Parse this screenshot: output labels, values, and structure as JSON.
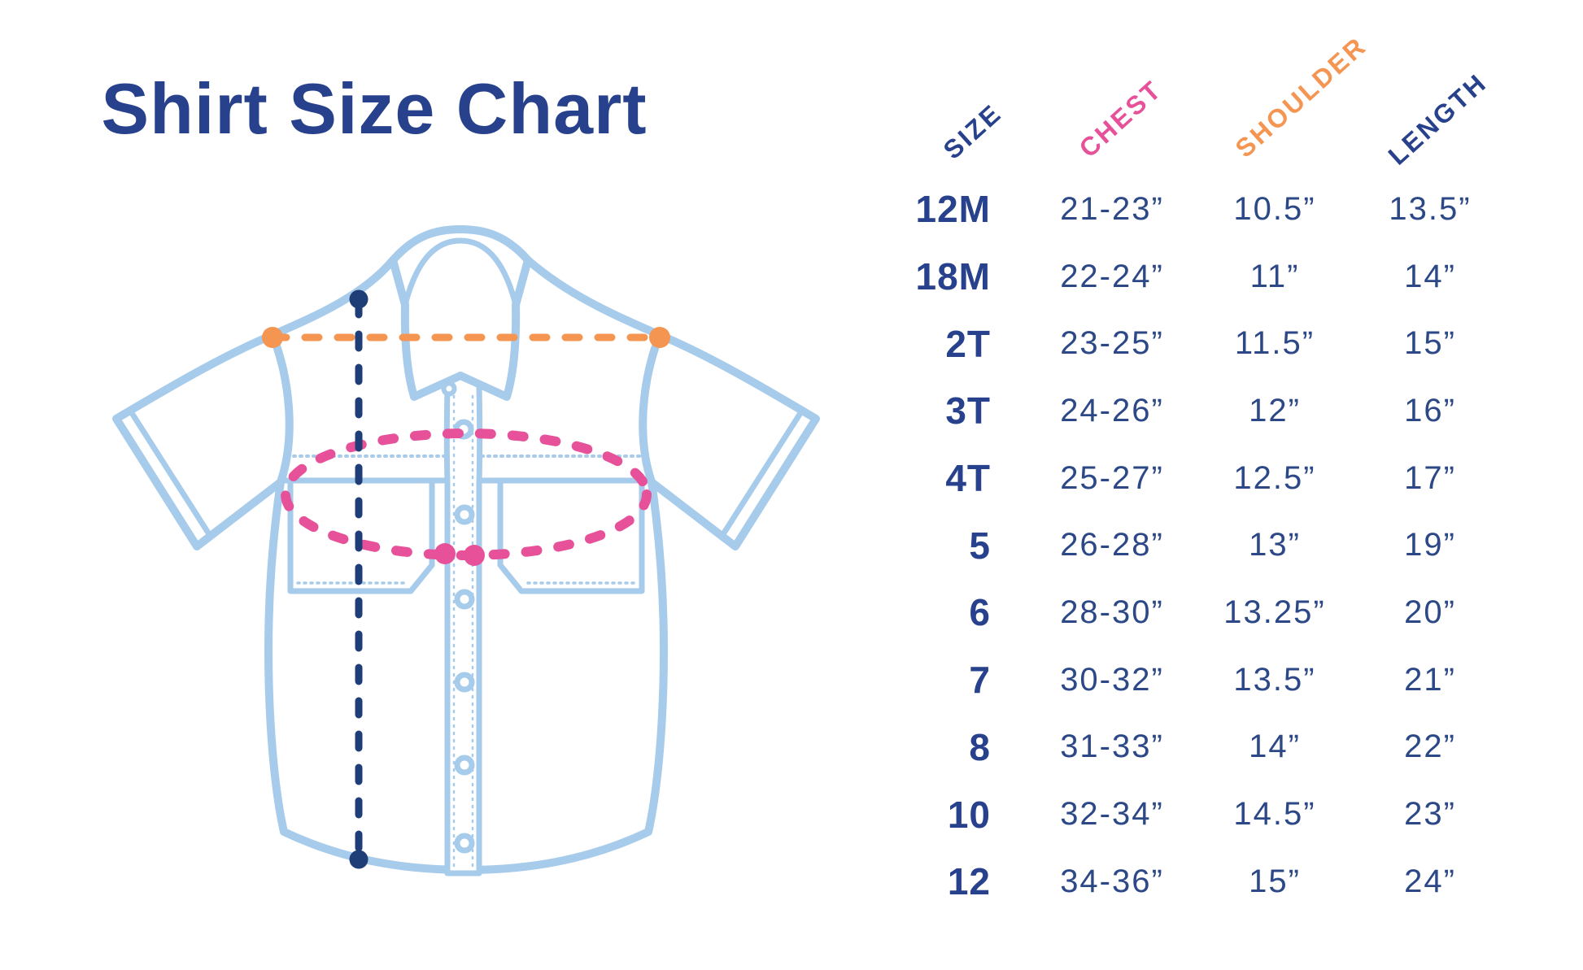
{
  "title": "Shirt Size Chart",
  "colors": {
    "navy_text": "#28418C",
    "value_text": "#2C4887",
    "pink": "#E6519A",
    "orange": "#F49552",
    "light_blue": "#A7CBEB",
    "line_navy": "#1F3E78"
  },
  "diagram": {
    "shirt_outline_color": "#A7CBEB",
    "shoulder_line_color": "#F49552",
    "chest_line_color": "#E6519A",
    "length_line_color": "#1F3E78"
  },
  "table": {
    "columns": [
      {
        "label": "SIZE",
        "color": "#28418C"
      },
      {
        "label": "CHEST",
        "color": "#E6519A"
      },
      {
        "label": "SHOULDER",
        "color": "#F49552"
      },
      {
        "label": "LENGTH",
        "color": "#28418C"
      }
    ],
    "rows": [
      {
        "size": "12M",
        "chest": "21-23”",
        "shoulder": "10.5”",
        "length": "13.5”"
      },
      {
        "size": "18M",
        "chest": "22-24”",
        "shoulder": "11”",
        "length": "14”"
      },
      {
        "size": "2T",
        "chest": "23-25”",
        "shoulder": "11.5”",
        "length": "15”"
      },
      {
        "size": "3T",
        "chest": "24-26”",
        "shoulder": "12”",
        "length": "16”"
      },
      {
        "size": "4T",
        "chest": "25-27”",
        "shoulder": "12.5”",
        "length": "17”"
      },
      {
        "size": "5",
        "chest": "26-28”",
        "shoulder": "13”",
        "length": "19”"
      },
      {
        "size": "6",
        "chest": "28-30”",
        "shoulder": "13.25”",
        "length": "20”"
      },
      {
        "size": "7",
        "chest": "30-32”",
        "shoulder": "13.5”",
        "length": "21”"
      },
      {
        "size": "8",
        "chest": "31-33”",
        "shoulder": "14”",
        "length": "22”"
      },
      {
        "size": "10",
        "chest": "32-34”",
        "shoulder": "14.5”",
        "length": "23”"
      },
      {
        "size": "12",
        "chest": "34-36”",
        "shoulder": "15”",
        "length": "24”"
      }
    ]
  },
  "chart_data": {
    "type": "table",
    "title": "Shirt Size Chart",
    "columns": [
      "SIZE",
      "CHEST",
      "SHOULDER",
      "LENGTH"
    ],
    "rows": [
      [
        "12M",
        "21-23”",
        "10.5”",
        "13.5”"
      ],
      [
        "18M",
        "22-24”",
        "11”",
        "14”"
      ],
      [
        "2T",
        "23-25”",
        "11.5”",
        "15”"
      ],
      [
        "3T",
        "24-26”",
        "12”",
        "16”"
      ],
      [
        "4T",
        "25-27”",
        "12.5”",
        "17”"
      ],
      [
        "5",
        "26-28”",
        "13”",
        "19”"
      ],
      [
        "6",
        "28-30”",
        "13.25”",
        "20”"
      ],
      [
        "7",
        "30-32”",
        "13.5”",
        "21”"
      ],
      [
        "8",
        "31-33”",
        "14”",
        "22”"
      ],
      [
        "10",
        "32-34”",
        "14.5”",
        "23”"
      ],
      [
        "12",
        "34-36”",
        "15”",
        "24”"
      ]
    ],
    "legend": [
      {
        "label": "CHEST",
        "indicator": "dashed ellipse around chest",
        "color": "#E6519A"
      },
      {
        "label": "SHOULDER",
        "indicator": "horizontal dashed line across shoulders",
        "color": "#F49552"
      },
      {
        "label": "LENGTH",
        "indicator": "vertical dashed line shoulder to hem",
        "color": "#1F3E78"
      }
    ]
  }
}
